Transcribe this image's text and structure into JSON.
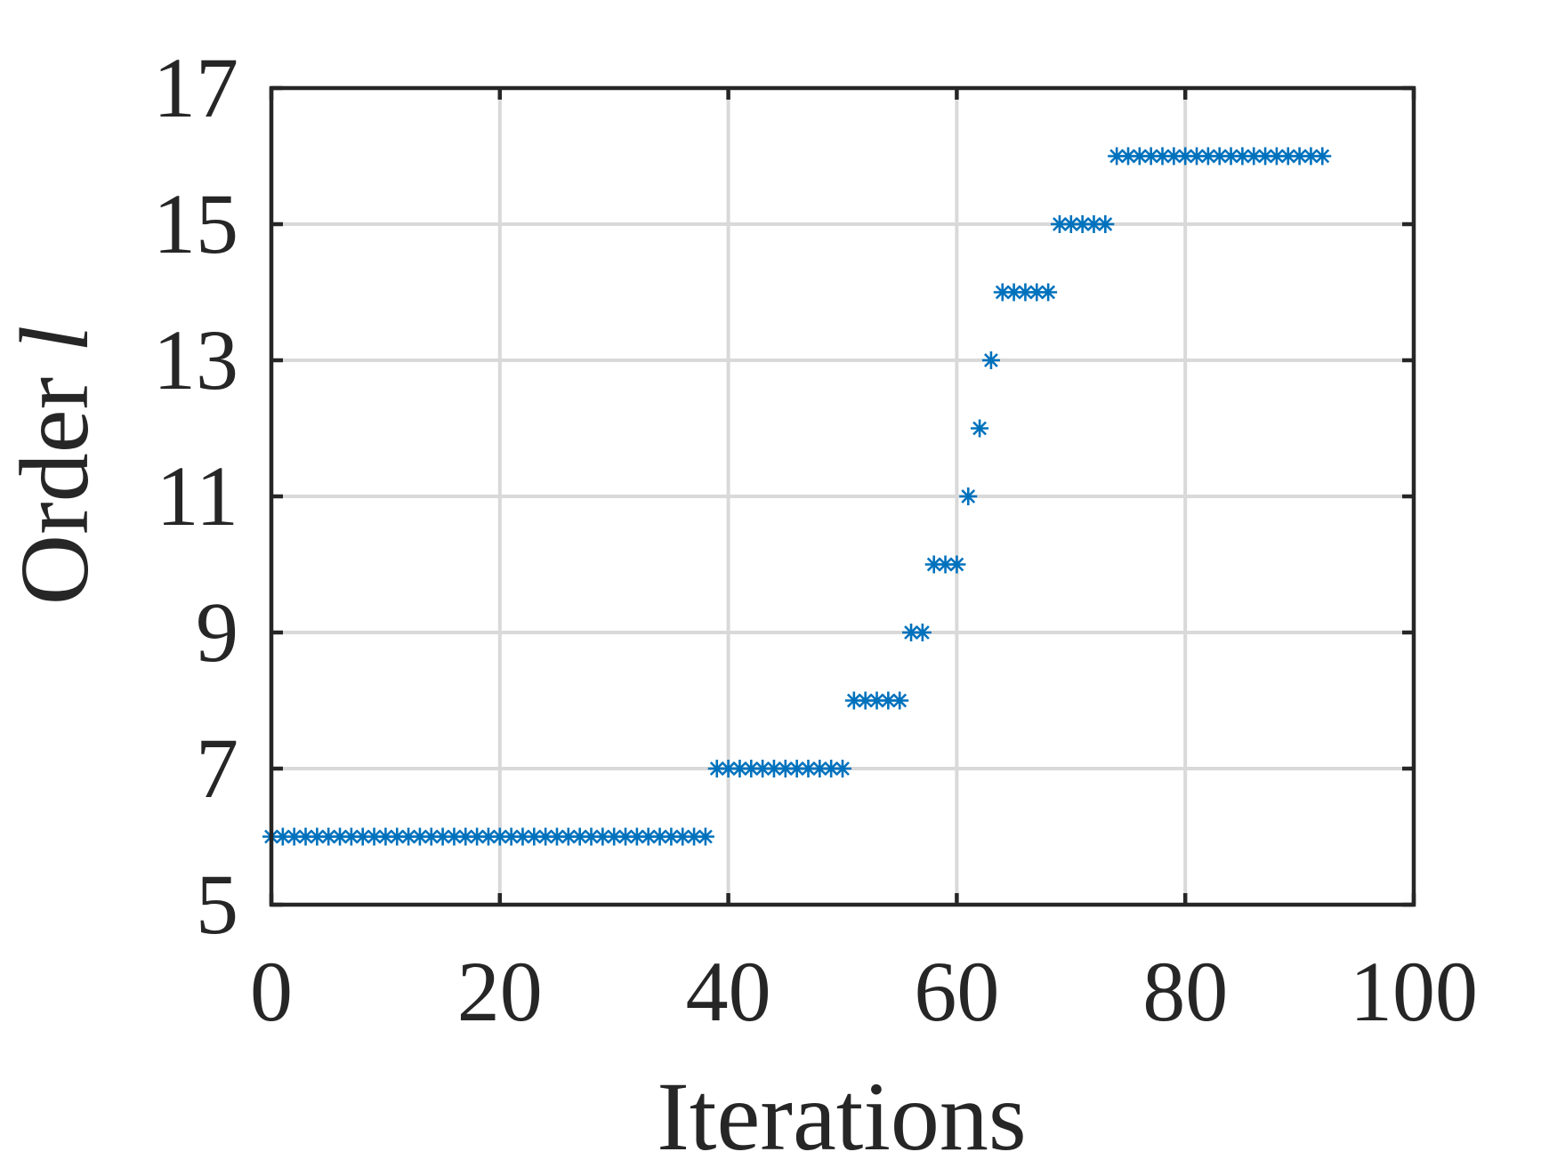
{
  "chart_data": {
    "type": "scatter",
    "marker": "asterisk",
    "marker_color": "#0072BD",
    "axis_color": "#262626",
    "grid": true,
    "grid_color": "#d9d9d9",
    "xlabel": "Iterations",
    "ylabel_text": "Order ",
    "ylabel_symbol": "l",
    "xlim": [
      0,
      100
    ],
    "ylim": [
      5,
      17
    ],
    "xticks": [
      0,
      20,
      40,
      60,
      80,
      100
    ],
    "yticks": [
      5,
      7,
      9,
      11,
      13,
      15,
      17
    ],
    "series": [
      {
        "x": [
          0,
          1,
          2,
          3,
          4,
          5,
          6,
          7,
          8,
          9,
          10,
          11,
          12,
          13,
          14,
          15,
          16,
          17,
          18,
          19,
          20,
          21,
          22,
          23,
          24,
          25,
          26,
          27,
          28,
          29,
          30,
          31,
          32,
          33,
          34,
          35,
          36,
          37,
          38,
          39,
          40,
          41,
          42,
          43,
          44,
          45,
          46,
          47,
          48,
          49,
          50,
          51,
          52,
          53,
          54,
          55,
          56,
          57,
          58,
          59,
          60,
          61,
          62,
          63,
          64,
          65,
          66,
          67,
          68,
          69,
          70,
          71,
          72,
          73,
          74,
          75,
          76,
          77,
          78,
          79,
          80,
          81,
          82,
          83,
          84,
          85,
          86,
          87,
          88,
          89,
          90,
          91,
          92
        ],
        "y": [
          6,
          6,
          6,
          6,
          6,
          6,
          6,
          6,
          6,
          6,
          6,
          6,
          6,
          6,
          6,
          6,
          6,
          6,
          6,
          6,
          6,
          6,
          6,
          6,
          6,
          6,
          6,
          6,
          6,
          6,
          6,
          6,
          6,
          6,
          6,
          6,
          6,
          6,
          6,
          7,
          7,
          7,
          7,
          7,
          7,
          7,
          7,
          7,
          7,
          7,
          7,
          8,
          8,
          8,
          8,
          8,
          9,
          9,
          10,
          10,
          10,
          11,
          12,
          13,
          14,
          14,
          14,
          14,
          14,
          15,
          15,
          15,
          15,
          15,
          16,
          16,
          16,
          16,
          16,
          16,
          16,
          16,
          16,
          16,
          16,
          16,
          16,
          16,
          16,
          16,
          16,
          16,
          16
        ]
      }
    ]
  }
}
